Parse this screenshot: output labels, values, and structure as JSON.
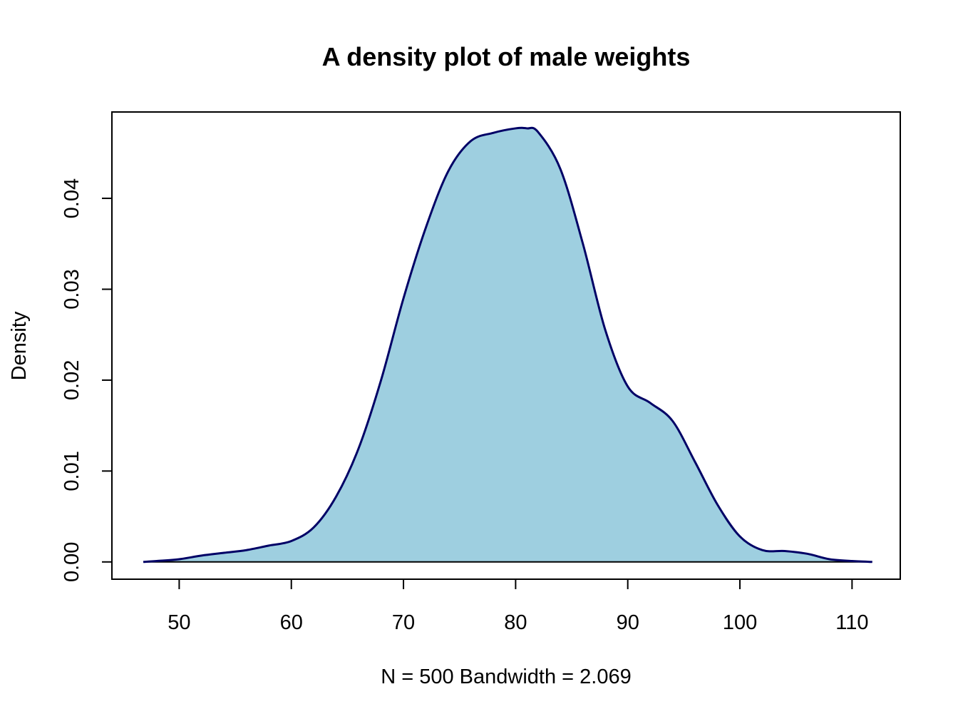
{
  "chart_data": {
    "type": "area",
    "title": "A density plot of male weights",
    "xlabel": "N = 500   Bandwidth = 2.069",
    "ylabel": "Density",
    "xlim": [
      44.0,
      114.3
    ],
    "ylim": [
      -0.0019,
      0.0495
    ],
    "x_ticks": [
      50,
      60,
      70,
      80,
      90,
      100,
      110
    ],
    "y_ticks": [
      0.0,
      0.01,
      0.02,
      0.03,
      0.04
    ],
    "x_tick_labels": [
      "50",
      "60",
      "70",
      "80",
      "90",
      "100",
      "110"
    ],
    "y_tick_labels": [
      "0.00",
      "0.01",
      "0.02",
      "0.03",
      "0.04"
    ],
    "grid": false,
    "colors": {
      "fill": "#9ecfe0",
      "line": "#000066",
      "baseline": "#000000",
      "frame": "#000000"
    },
    "series": [
      {
        "x": [
          46.8,
          48,
          50,
          52,
          54,
          56,
          58,
          60,
          62,
          64,
          66,
          68,
          70,
          72,
          74,
          76,
          78,
          80,
          81,
          82,
          84,
          86,
          88,
          90,
          92,
          94,
          96,
          98,
          100,
          102,
          104,
          106,
          108,
          110,
          111.8
        ],
        "y": [
          0.0,
          0.0001,
          0.0003,
          0.0007,
          0.001,
          0.0013,
          0.0018,
          0.0023,
          0.0038,
          0.0072,
          0.0125,
          0.02,
          0.029,
          0.0368,
          0.043,
          0.0463,
          0.0472,
          0.0477,
          0.0477,
          0.0473,
          0.0432,
          0.035,
          0.0255,
          0.0193,
          0.0175,
          0.0155,
          0.011,
          0.0063,
          0.0028,
          0.0013,
          0.0012,
          0.0009,
          0.0003,
          0.0001,
          0.0
        ]
      }
    ]
  }
}
